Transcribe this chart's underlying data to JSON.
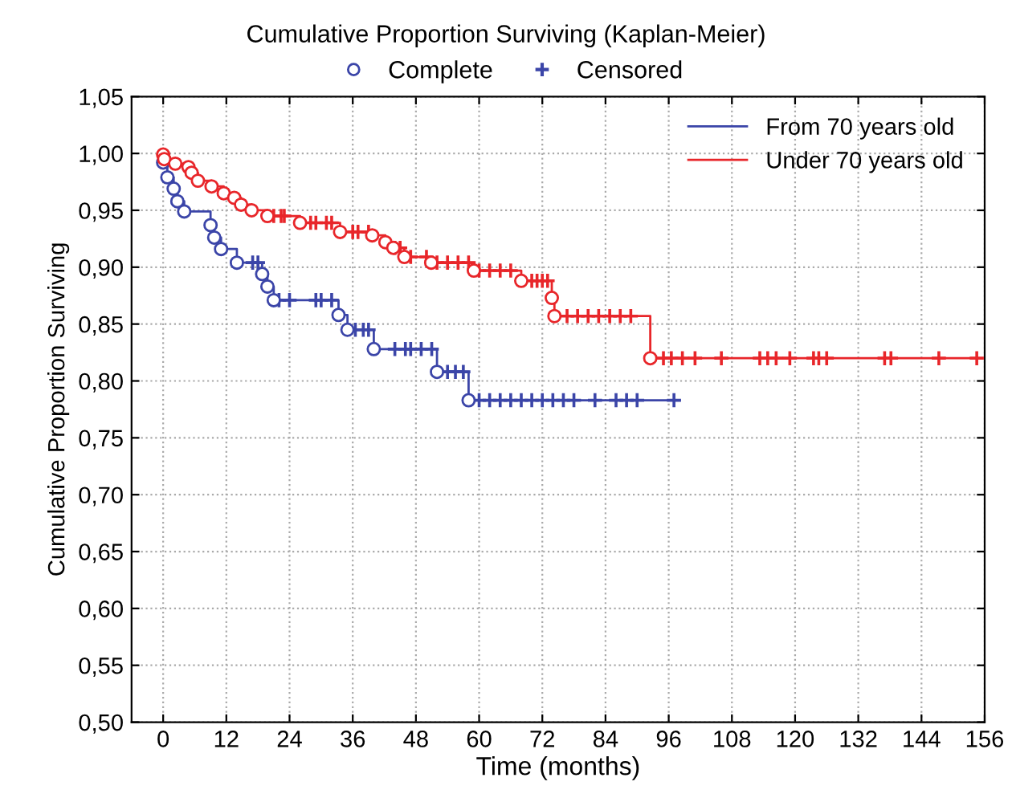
{
  "chart_data": {
    "type": "step",
    "title": "Cumulative Proportion Surviving (Kaplan-Meier)",
    "xlabel": "Time (months)",
    "ylabel": "Cumulative Proportion Surviving",
    "xlim": [
      -6,
      156
    ],
    "xticks": [
      0,
      12,
      24,
      36,
      48,
      60,
      72,
      84,
      96,
      108,
      120,
      132,
      144,
      156
    ],
    "ylim": [
      0.5,
      1.05
    ],
    "yticks": [
      {
        "value": 0.5,
        "label": "0,50"
      },
      {
        "value": 0.55,
        "label": "0,55"
      },
      {
        "value": 0.6,
        "label": "0,60"
      },
      {
        "value": 0.65,
        "label": "0,65"
      },
      {
        "value": 0.7,
        "label": "0,70"
      },
      {
        "value": 0.75,
        "label": "0,75"
      },
      {
        "value": 0.8,
        "label": "0,80"
      },
      {
        "value": 0.85,
        "label": "0,85"
      },
      {
        "value": 0.9,
        "label": "0,90"
      },
      {
        "value": 0.95,
        "label": "0,95"
      },
      {
        "value": 1.0,
        "label": "1,00"
      },
      {
        "value": 1.05,
        "label": "1,05"
      }
    ],
    "grid": true,
    "legend": "top right",
    "line_style": "solid",
    "series": [
      {
        "name": "From 70 years old",
        "color": "#3b45a8",
        "x": [
          0,
          0.8,
          2,
          2.7,
          4,
          9,
          9.7,
          11,
          14,
          18.8,
          19.8,
          21,
          33.3,
          35,
          40,
          52,
          58,
          97
        ],
        "values": [
          0.992,
          0.979,
          0.969,
          0.958,
          0.949,
          0.937,
          0.926,
          0.916,
          0.904,
          0.894,
          0.883,
          0.871,
          0.858,
          0.845,
          0.828,
          0.808,
          0.783,
          0.783
        ]
      },
      {
        "name": "Under 70 years old",
        "color": "#e8262a",
        "x": [
          0,
          0.2,
          2.3,
          4.8,
          5.4,
          6.6,
          9.2,
          11.5,
          13.5,
          14.8,
          16.8,
          19.8,
          26,
          33.6,
          39.7,
          42.2,
          43.7,
          45.8,
          50.9,
          59,
          68,
          73.8,
          74.3,
          92.5,
          154.5
        ],
        "values": [
          0.999,
          0.995,
          0.991,
          0.988,
          0.983,
          0.976,
          0.971,
          0.965,
          0.961,
          0.955,
          0.95,
          0.945,
          0.939,
          0.931,
          0.928,
          0.922,
          0.917,
          0.909,
          0.904,
          0.897,
          0.888,
          0.873,
          0.857,
          0.82,
          0.82
        ]
      },
      {
        "name": "Complete",
        "type": "scatter",
        "marker": "circle",
        "color": "#3b45a8",
        "x": [
          0,
          0.8,
          2,
          2.7,
          4,
          9,
          9.7,
          11,
          14,
          18.8,
          19.8,
          21,
          33.3,
          35,
          40,
          52,
          58,
          0,
          0.2,
          2.3,
          4.8,
          5.4,
          6.6,
          9.2,
          11.5,
          13.5,
          14.8,
          16.8,
          19.8,
          26,
          33.6,
          39.7,
          42.2,
          43.7,
          45.8,
          50.9,
          59,
          68,
          73.8,
          74.3,
          92.5
        ],
        "values": [
          0.992,
          0.979,
          0.969,
          0.958,
          0.949,
          0.937,
          0.926,
          0.916,
          0.904,
          0.894,
          0.883,
          0.871,
          0.858,
          0.845,
          0.828,
          0.808,
          0.783,
          0.999,
          0.995,
          0.991,
          0.988,
          0.983,
          0.976,
          0.971,
          0.965,
          0.961,
          0.955,
          0.95,
          0.945,
          0.939,
          0.931,
          0.928,
          0.922,
          0.917,
          0.909,
          0.904,
          0.897,
          0.888,
          0.873,
          0.857,
          0.82
        ],
        "colors": [
          "#3b45a8",
          "#3b45a8",
          "#3b45a8",
          "#3b45a8",
          "#3b45a8",
          "#3b45a8",
          "#3b45a8",
          "#3b45a8",
          "#3b45a8",
          "#3b45a8",
          "#3b45a8",
          "#3b45a8",
          "#3b45a8",
          "#3b45a8",
          "#3b45a8",
          "#3b45a8",
          "#3b45a8",
          "#e8262a",
          "#e8262a",
          "#e8262a",
          "#e8262a",
          "#e8262a",
          "#e8262a",
          "#e8262a",
          "#e8262a",
          "#e8262a",
          "#e8262a",
          "#e8262a",
          "#e8262a",
          "#e8262a",
          "#e8262a",
          "#e8262a",
          "#e8262a",
          "#e8262a",
          "#e8262a",
          "#e8262a",
          "#e8262a",
          "#e8262a",
          "#e8262a",
          "#e8262a",
          "#e8262a"
        ]
      },
      {
        "name": "Censored",
        "type": "scatter",
        "marker": "cross",
        "color": "#3b45a8",
        "x": [
          17,
          18,
          22,
          24,
          29,
          30,
          32,
          36.5,
          38,
          39,
          44,
          46,
          47,
          49,
          51,
          54,
          55.5,
          57,
          60,
          62,
          64,
          66,
          68,
          70,
          72,
          74,
          76,
          78,
          82,
          86,
          88,
          90,
          97,
          21,
          22.4,
          23,
          28,
          29,
          31,
          32,
          36,
          37,
          39,
          44,
          45,
          47,
          50,
          52,
          54,
          56,
          58,
          60,
          62,
          64,
          66,
          70,
          71,
          72,
          73,
          76.7,
          78.7,
          80.7,
          82.7,
          84.8,
          86.8,
          88.8,
          95,
          96.5,
          98.6,
          101,
          106,
          113.3,
          114.8,
          116.4,
          119,
          123.5,
          124.5,
          126,
          137,
          138.2,
          147.3,
          154.5
        ],
        "values": [
          0.904,
          0.904,
          0.871,
          0.871,
          0.871,
          0.871,
          0.871,
          0.845,
          0.845,
          0.845,
          0.828,
          0.828,
          0.828,
          0.828,
          0.828,
          0.808,
          0.808,
          0.808,
          0.783,
          0.783,
          0.783,
          0.783,
          0.783,
          0.783,
          0.783,
          0.783,
          0.783,
          0.783,
          0.783,
          0.783,
          0.783,
          0.783,
          0.783,
          0.945,
          0.945,
          0.945,
          0.939,
          0.939,
          0.939,
          0.939,
          0.931,
          0.931,
          0.931,
          0.917,
          0.917,
          0.909,
          0.909,
          0.904,
          0.904,
          0.904,
          0.904,
          0.897,
          0.897,
          0.897,
          0.897,
          0.888,
          0.888,
          0.888,
          0.888,
          0.857,
          0.857,
          0.857,
          0.857,
          0.857,
          0.857,
          0.857,
          0.82,
          0.82,
          0.82,
          0.82,
          0.82,
          0.82,
          0.82,
          0.82,
          0.82,
          0.82,
          0.82,
          0.82,
          0.82,
          0.82,
          0.82,
          0.82
        ],
        "colors": [
          "#3b45a8",
          "#3b45a8",
          "#3b45a8",
          "#3b45a8",
          "#3b45a8",
          "#3b45a8",
          "#3b45a8",
          "#3b45a8",
          "#3b45a8",
          "#3b45a8",
          "#3b45a8",
          "#3b45a8",
          "#3b45a8",
          "#3b45a8",
          "#3b45a8",
          "#3b45a8",
          "#3b45a8",
          "#3b45a8",
          "#3b45a8",
          "#3b45a8",
          "#3b45a8",
          "#3b45a8",
          "#3b45a8",
          "#3b45a8",
          "#3b45a8",
          "#3b45a8",
          "#3b45a8",
          "#3b45a8",
          "#3b45a8",
          "#3b45a8",
          "#3b45a8",
          "#3b45a8",
          "#3b45a8",
          "#e8262a",
          "#e8262a",
          "#e8262a",
          "#e8262a",
          "#e8262a",
          "#e8262a",
          "#e8262a",
          "#e8262a",
          "#e8262a",
          "#e8262a",
          "#e8262a",
          "#e8262a",
          "#e8262a",
          "#e8262a",
          "#e8262a",
          "#e8262a",
          "#e8262a",
          "#e8262a",
          "#e8262a",
          "#e8262a",
          "#e8262a",
          "#e8262a",
          "#e8262a",
          "#e8262a",
          "#e8262a",
          "#e8262a",
          "#e8262a",
          "#e8262a",
          "#e8262a",
          "#e8262a",
          "#e8262a",
          "#e8262a",
          "#e8262a",
          "#e8262a",
          "#e8262a",
          "#e8262a",
          "#e8262a",
          "#e8262a",
          "#e8262a",
          "#e8262a",
          "#e8262a",
          "#e8262a",
          "#e8262a",
          "#e8262a",
          "#e8262a",
          "#e8262a",
          "#e8262a",
          "#e8262a",
          "#e8262a"
        ]
      }
    ]
  }
}
